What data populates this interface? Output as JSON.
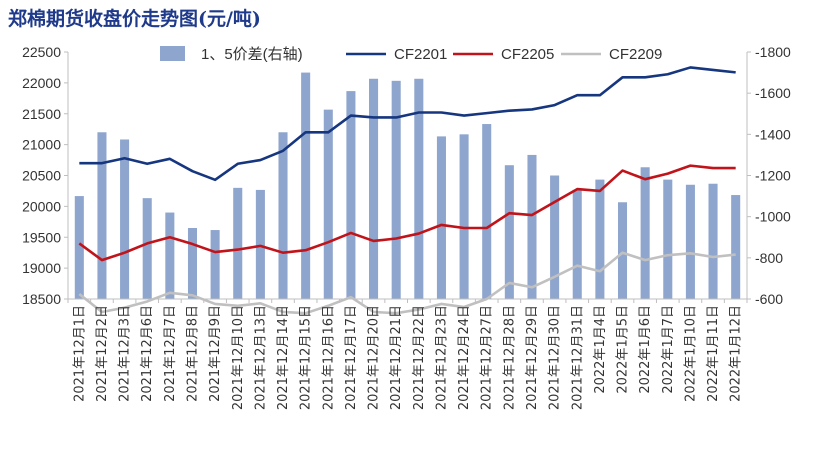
{
  "chart_data": {
    "type": "bar+line",
    "title": "郑棉期货收盘价走势图(元/吨)",
    "categories": [
      "2021年12月1日",
      "2021年12月2日",
      "2021年12月3日",
      "2021年12月6日",
      "2021年12月7日",
      "2021年12月8日",
      "2021年12月9日",
      "2021年12月10日",
      "2021年12月13日",
      "2021年12月14日",
      "2021年12月15日",
      "2021年12月16日",
      "2021年12月17日",
      "2021年12月20日",
      "2021年12月21日",
      "2021年12月22日",
      "2021年12月23日",
      "2021年12月24日",
      "2021年12月27日",
      "2021年12月28日",
      "2021年12月29日",
      "2021年12月30日",
      "2021年12月31日",
      "2022年1月4日",
      "2022年1月5日",
      "2022年1月6日",
      "2022年1月7日",
      "2022年1月10日",
      "2022年1月11日",
      "2022年1月12日"
    ],
    "left_axis": {
      "ylim": [
        18500,
        22500
      ],
      "ticks": [
        18500,
        19000,
        19500,
        20000,
        20500,
        21000,
        21500,
        22000,
        22500
      ]
    },
    "right_axis": {
      "ylim": [
        600,
        1800
      ],
      "ticks": [
        600,
        800,
        1000,
        1200,
        1400,
        1600,
        1800
      ],
      "tick_labels": [
        "-600",
        "-800",
        "-1000",
        "-1200",
        "-1400",
        "-1600",
        "-1800"
      ]
    },
    "bar_series": {
      "name": "1、5价差(右轴)",
      "axis": "right",
      "color": "#8ea5cd",
      "values": [
        1100,
        1410,
        1375,
        1090,
        1020,
        945,
        935,
        1140,
        1130,
        1410,
        1700,
        1520,
        1610,
        1670,
        1660,
        1670,
        1390,
        1400,
        1450,
        1250,
        1300,
        1200,
        1130,
        1180,
        1070,
        1240,
        1180,
        1155,
        1160,
        1105
      ]
    },
    "line_series": [
      {
        "name": "CF2201",
        "axis": "left",
        "color": "#16367f",
        "values": [
          20700,
          20700,
          20780,
          20690,
          20770,
          20570,
          20430,
          20690,
          20750,
          20900,
          21200,
          21200,
          21470,
          21440,
          21440,
          21520,
          21520,
          21470,
          21510,
          21550,
          21570,
          21640,
          21800,
          21800,
          22090,
          22090,
          22140,
          22250,
          22210,
          22170
        ]
      },
      {
        "name": "CF2205",
        "axis": "left",
        "color": "#c0141a",
        "values": [
          19400,
          19130,
          19250,
          19400,
          19500,
          19390,
          19260,
          19300,
          19360,
          19250,
          19290,
          19420,
          19570,
          19440,
          19480,
          19560,
          19700,
          19650,
          19650,
          19890,
          19860,
          20070,
          20280,
          20250,
          20580,
          20440,
          20530,
          20660,
          20620,
          20620
        ]
      },
      {
        "name": "CF2209",
        "axis": "left",
        "color": "#c0c0c0",
        "values": [
          18580,
          18290,
          18360,
          18460,
          18600,
          18560,
          18420,
          18390,
          18430,
          18290,
          18270,
          18390,
          18530,
          18290,
          18270,
          18330,
          18420,
          18370,
          18500,
          18760,
          18690,
          18860,
          19040,
          18950,
          19250,
          19130,
          19210,
          19240,
          19180,
          19220
        ]
      }
    ],
    "legend": {
      "position": "top"
    },
    "grid": false
  }
}
